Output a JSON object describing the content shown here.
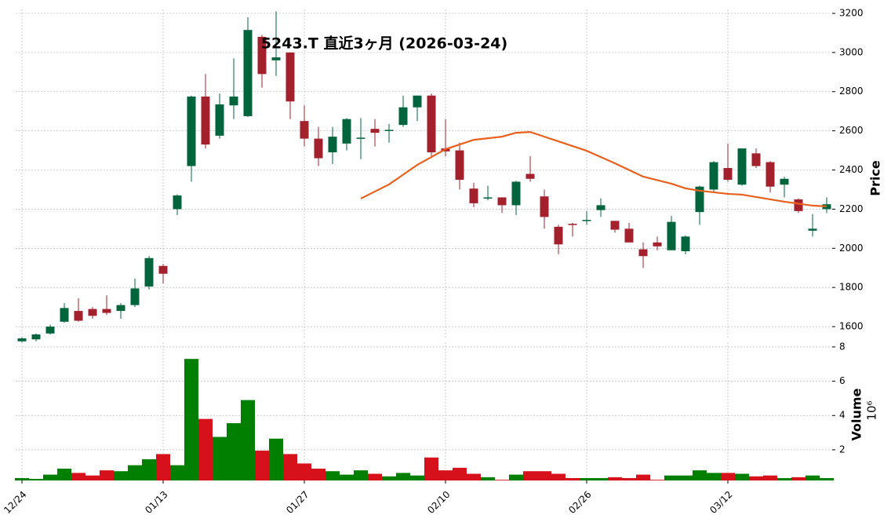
{
  "chart_data": [
    {
      "type": "candlestick",
      "title": "5243.T  直近3ヶ月  (2026-03-24)",
      "ylabel": "Price",
      "categories": [
        "12/24",
        null,
        null,
        null,
        null,
        null,
        null,
        null,
        null,
        null,
        "01/13",
        null,
        null,
        null,
        null,
        null,
        null,
        null,
        null,
        null,
        "01/27",
        null,
        null,
        null,
        null,
        null,
        null,
        null,
        null,
        null,
        "02/10",
        null,
        null,
        null,
        null,
        null,
        null,
        null,
        null,
        null,
        "02/26",
        null,
        null,
        null,
        null,
        null,
        null,
        null,
        null,
        null,
        "03/12",
        null,
        null,
        null,
        null,
        null,
        null,
        null
      ],
      "open": [
        1525,
        1535,
        1565,
        1625,
        1680,
        1690,
        1690,
        1680,
        1710,
        1805,
        1910,
        2200,
        2420,
        2775,
        2575,
        2730,
        2675,
        3080,
        2960,
        3000,
        2650,
        2560,
        2490,
        2535,
        2560,
        2610,
        2600,
        2630,
        2720,
        2780,
        2510,
        2500,
        2305,
        2255,
        2260,
        2220,
        2380,
        2265,
        2110,
        2125,
        2140,
        2195,
        2140,
        2100,
        1995,
        2030,
        1990,
        1985,
        2185,
        2300,
        2410,
        2325,
        2485,
        2440,
        2325,
        2250,
        2090,
        2200
      ],
      "high": [
        1545,
        1565,
        1610,
        1720,
        1745,
        1700,
        1760,
        1720,
        1845,
        1960,
        1920,
        2275,
        2780,
        2890,
        2790,
        2970,
        3180,
        3090,
        3210,
        3000,
        2730,
        2620,
        2620,
        2665,
        2665,
        2660,
        2635,
        2780,
        2780,
        2790,
        2660,
        2540,
        2335,
        2320,
        2260,
        2345,
        2470,
        2300,
        2120,
        2130,
        2190,
        2255,
        2140,
        2130,
        2030,
        2060,
        2165,
        2065,
        2320,
        2445,
        2535,
        2510,
        2510,
        2445,
        2365,
        2255,
        2175,
        2260
      ],
      "low": [
        1520,
        1525,
        1560,
        1620,
        1625,
        1640,
        1660,
        1640,
        1700,
        1790,
        1820,
        2170,
        2340,
        2510,
        2560,
        2660,
        2670,
        2820,
        2880,
        2660,
        2520,
        2420,
        2430,
        2500,
        2455,
        2520,
        2540,
        2620,
        2650,
        2460,
        2470,
        2300,
        2210,
        2245,
        2180,
        2170,
        2340,
        2100,
        1970,
        2060,
        2120,
        2160,
        2080,
        2030,
        1900,
        1990,
        1990,
        1970,
        2120,
        2290,
        2340,
        2320,
        2410,
        2285,
        2260,
        2180,
        2060,
        2180
      ],
      "close": [
        1540,
        1560,
        1600,
        1695,
        1630,
        1655,
        1670,
        1710,
        1795,
        1950,
        1870,
        2270,
        2775,
        2530,
        2735,
        2775,
        3115,
        2890,
        2975,
        2750,
        2560,
        2460,
        2570,
        2660,
        2565,
        2590,
        2605,
        2720,
        2780,
        2490,
        2495,
        2350,
        2230,
        2260,
        2220,
        2340,
        2355,
        2160,
        2020,
        2120,
        2145,
        2220,
        2095,
        2030,
        1960,
        2010,
        2135,
        2060,
        2315,
        2440,
        2350,
        2510,
        2420,
        2315,
        2355,
        2190,
        2100,
        2225
      ],
      "up_color": "#00653c",
      "down_color": "#a3212c",
      "line_series": [
        {
          "color": "#e8601c",
          "values": [
            null,
            null,
            null,
            null,
            null,
            null,
            null,
            null,
            null,
            null,
            null,
            null,
            null,
            null,
            null,
            null,
            null,
            null,
            null,
            null,
            null,
            null,
            null,
            null,
            2254,
            2290,
            2326,
            2376,
            2426,
            2466,
            2506,
            2530,
            2554,
            2562,
            2570,
            2590,
            2594,
            2570,
            2546,
            2522,
            2498,
            2466,
            2434,
            2400,
            2366,
            2348,
            2330,
            2306,
            2294,
            2286,
            2278,
            2274,
            2262,
            2250,
            2238,
            2228,
            2218,
            2214
          ]
        }
      ],
      "ylim": [
        1544,
        3220
      ],
      "yticks": [
        1600,
        1800,
        2000,
        2200,
        2400,
        2600,
        2800,
        3000,
        3200
      ],
      "grid": true
    },
    {
      "type": "volume",
      "ylabel": "Volume",
      "yunit": "10⁶",
      "values": [
        0.35,
        0.3,
        0.55,
        0.9,
        0.65,
        0.5,
        0.8,
        0.75,
        1.1,
        1.45,
        1.75,
        1.1,
        7.3,
        3.8,
        2.75,
        3.55,
        4.9,
        1.95,
        2.65,
        1.75,
        1.2,
        0.9,
        0.75,
        0.55,
        0.8,
        0.6,
        0.45,
        0.65,
        0.5,
        1.55,
        0.8,
        0.95,
        0.6,
        0.4,
        0.25,
        0.55,
        0.75,
        0.75,
        0.6,
        0.35,
        0.35,
        0.35,
        0.4,
        0.35,
        0.55,
        0.25,
        0.5,
        0.5,
        0.8,
        0.65,
        0.65,
        0.6,
        0.45,
        0.5,
        0.35,
        0.4,
        0.5,
        0.35
      ],
      "up_color": "#007f00",
      "down_color": "#d6111b",
      "ylim": [
        0.21,
        8.27
      ],
      "yticks": [
        2,
        4,
        6,
        8
      ],
      "grid": true
    }
  ]
}
